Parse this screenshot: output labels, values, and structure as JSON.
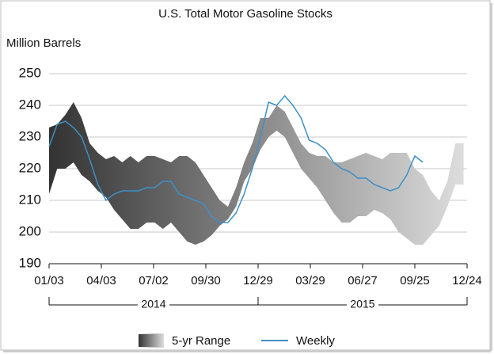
{
  "chart_data": {
    "type": "range_line",
    "title": "U.S. Total Motor Gasoline Stocks",
    "y_label": "Million Barrels",
    "x": [
      "2014-01-03",
      "2014-01-17",
      "2014-01-31",
      "2014-02-14",
      "2014-02-28",
      "2014-03-14",
      "2014-03-28",
      "2014-04-11",
      "2014-04-25",
      "2014-05-09",
      "2014-05-23",
      "2014-06-06",
      "2014-06-20",
      "2014-07-04",
      "2014-07-18",
      "2014-08-01",
      "2014-08-15",
      "2014-08-29",
      "2014-09-12",
      "2014-09-26",
      "2014-10-10",
      "2014-10-24",
      "2014-11-07",
      "2014-11-21",
      "2014-12-05",
      "2014-12-19",
      "2015-01-02",
      "2015-01-16",
      "2015-01-30",
      "2015-02-13",
      "2015-02-27",
      "2015-03-13",
      "2015-03-27",
      "2015-04-10",
      "2015-04-24",
      "2015-05-08",
      "2015-05-22",
      "2015-06-05",
      "2015-06-19",
      "2015-07-03",
      "2015-07-17",
      "2015-07-31",
      "2015-08-14",
      "2015-08-28",
      "2015-09-11",
      "2015-09-25",
      "2015-10-09",
      "2015-10-23",
      "2015-11-06",
      "2015-11-20",
      "2015-12-04",
      "2015-12-18"
    ],
    "series": [
      {
        "name": "5-yr Range",
        "color_start": "#333333",
        "color_end": "#dddddd",
        "low": [
          212,
          220,
          220,
          222,
          218,
          216,
          213,
          211,
          207,
          204,
          201,
          201,
          203,
          203,
          201,
          203,
          200,
          197,
          196,
          197,
          199,
          202,
          204,
          208,
          216,
          220,
          226,
          230,
          232,
          230,
          225,
          220,
          217,
          214,
          210,
          206,
          203,
          203,
          205,
          205,
          207,
          206,
          204,
          200,
          198,
          196,
          196,
          199,
          202,
          208,
          215,
          215
        ],
        "high": [
          233,
          234,
          237,
          241,
          236,
          228,
          225,
          223,
          224,
          222,
          224,
          222,
          224,
          224,
          223,
          222,
          224,
          224,
          222,
          218,
          214,
          210,
          208,
          214,
          222,
          228,
          236,
          236,
          240,
          238,
          233,
          228,
          225,
          224,
          224,
          222,
          222,
          223,
          224,
          225,
          224,
          223,
          225,
          225,
          225,
          220,
          218,
          213,
          210,
          216,
          228,
          228
        ]
      },
      {
        "name": "Weekly",
        "color": "#3d8fc6",
        "values": [
          227,
          234,
          235,
          233,
          230,
          223,
          215,
          210,
          212,
          213,
          213,
          213,
          214,
          214,
          216,
          216,
          212,
          211,
          210,
          209,
          205,
          203,
          203,
          206,
          212,
          220,
          230,
          241,
          240,
          243,
          240,
          236,
          229,
          228,
          226,
          222,
          220,
          219,
          217,
          217,
          215,
          214,
          213,
          214,
          218,
          224,
          222,
          null,
          null,
          null,
          null,
          null
        ]
      }
    ],
    "xlim": [
      "2014-01-03",
      "2015-12-24"
    ],
    "xticks": [
      {
        "value": "2014-01-03",
        "label": "01/03"
      },
      {
        "value": "2014-04-03",
        "label": "04/03"
      },
      {
        "value": "2014-07-02",
        "label": "07/02"
      },
      {
        "value": "2014-09-30",
        "label": "09/30"
      },
      {
        "value": "2014-12-29",
        "label": "12/29"
      },
      {
        "value": "2015-03-29",
        "label": "03/29"
      },
      {
        "value": "2015-06-27",
        "label": "06/27"
      },
      {
        "value": "2015-09-25",
        "label": "09/25"
      },
      {
        "value": "2015-12-24",
        "label": "12/24"
      }
    ],
    "year_groups": [
      "2014",
      "2015"
    ],
    "ylim": [
      190,
      250
    ],
    "yticks": [
      190,
      200,
      210,
      220,
      230,
      240,
      250
    ],
    "grid": true
  }
}
